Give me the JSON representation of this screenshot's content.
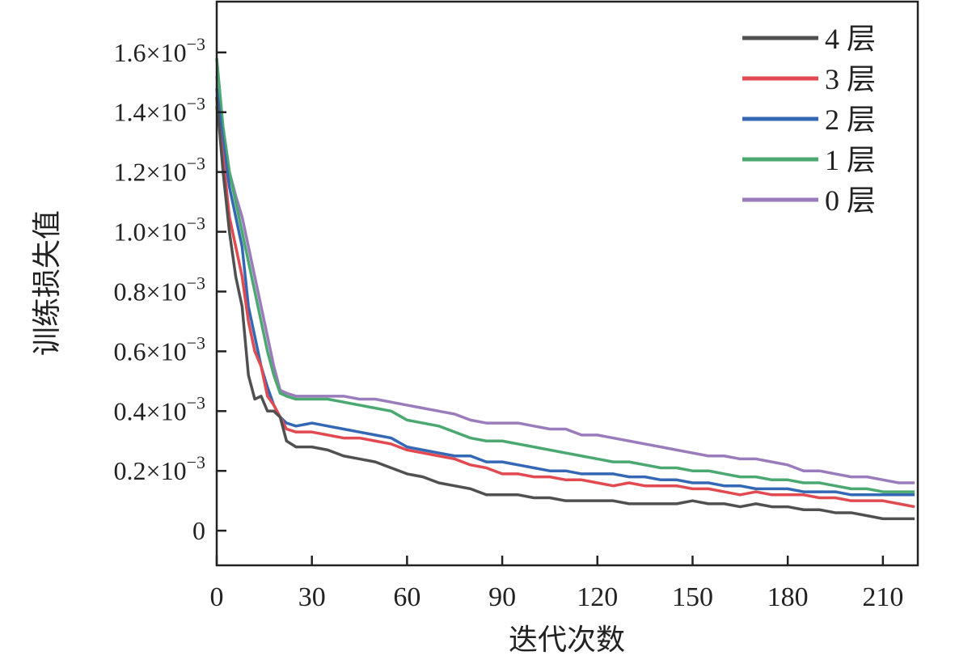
{
  "chart_data": {
    "type": "line",
    "title": "",
    "xlabel": "迭代次数",
    "ylabel": "训练损失值",
    "xlim": [
      0,
      221
    ],
    "ylim": [
      -0.000116,
      0.00177
    ],
    "y_unit_scale": 0.001,
    "xticks": [
      0,
      30,
      60,
      90,
      120,
      150,
      180,
      210
    ],
    "xtick_labels": [
      "0",
      "30",
      "60",
      "90",
      "120",
      "150",
      "180",
      "210"
    ],
    "yticks": [
      0,
      0.0002,
      0.0004,
      0.0006,
      0.0008,
      0.001,
      0.0012,
      0.0014,
      0.0016
    ],
    "ytick_labels": [
      {
        "mantissa": "0",
        "exp": ""
      },
      {
        "mantissa": "0.2×10",
        "exp": "−3"
      },
      {
        "mantissa": "0.4×10",
        "exp": "−3"
      },
      {
        "mantissa": "0.6×10",
        "exp": "−3"
      },
      {
        "mantissa": "0.8×10",
        "exp": "−3"
      },
      {
        "mantissa": "1.0×10",
        "exp": "−3"
      },
      {
        "mantissa": "1.2×10",
        "exp": "−3"
      },
      {
        "mantissa": "1.4×10",
        "exp": "−3"
      },
      {
        "mantissa": "1.6×10",
        "exp": "−3"
      }
    ],
    "grid": false,
    "legend_position": "top-right",
    "x": [
      0,
      2,
      4,
      6,
      8,
      10,
      12,
      14,
      16,
      18,
      20,
      22,
      25,
      30,
      35,
      40,
      45,
      50,
      55,
      60,
      65,
      70,
      75,
      80,
      85,
      90,
      95,
      100,
      105,
      110,
      115,
      120,
      125,
      130,
      135,
      140,
      145,
      150,
      155,
      160,
      165,
      170,
      175,
      180,
      185,
      190,
      195,
      200,
      205,
      210,
      215,
      220
    ],
    "series": [
      {
        "name": "4 层",
        "color": "#505050",
        "values_e-3": [
          1.45,
          1.2,
          1.0,
          0.85,
          0.75,
          0.52,
          0.44,
          0.45,
          0.4,
          0.4,
          0.38,
          0.3,
          0.28,
          0.28,
          0.27,
          0.25,
          0.24,
          0.23,
          0.21,
          0.19,
          0.18,
          0.16,
          0.15,
          0.14,
          0.12,
          0.12,
          0.12,
          0.11,
          0.11,
          0.1,
          0.1,
          0.1,
          0.1,
          0.09,
          0.09,
          0.09,
          0.09,
          0.1,
          0.09,
          0.09,
          0.08,
          0.09,
          0.08,
          0.08,
          0.07,
          0.07,
          0.06,
          0.06,
          0.05,
          0.04,
          0.04,
          0.04
        ]
      },
      {
        "name": "3 层",
        "color": "#e04a50",
        "values_e-3": [
          1.42,
          1.25,
          1.05,
          0.95,
          0.85,
          0.7,
          0.6,
          0.55,
          0.45,
          0.42,
          0.38,
          0.34,
          0.33,
          0.33,
          0.32,
          0.31,
          0.31,
          0.3,
          0.29,
          0.27,
          0.26,
          0.25,
          0.24,
          0.22,
          0.21,
          0.19,
          0.19,
          0.18,
          0.18,
          0.17,
          0.17,
          0.16,
          0.15,
          0.16,
          0.15,
          0.15,
          0.15,
          0.14,
          0.14,
          0.13,
          0.12,
          0.13,
          0.12,
          0.12,
          0.12,
          0.11,
          0.11,
          0.1,
          0.1,
          0.1,
          0.09,
          0.08
        ]
      },
      {
        "name": "2 层",
        "color": "#3468b4",
        "values_e-3": [
          1.48,
          1.3,
          1.15,
          1.05,
          0.95,
          0.75,
          0.65,
          0.55,
          0.48,
          0.42,
          0.38,
          0.36,
          0.35,
          0.36,
          0.35,
          0.34,
          0.33,
          0.32,
          0.31,
          0.28,
          0.27,
          0.26,
          0.25,
          0.25,
          0.23,
          0.23,
          0.22,
          0.21,
          0.2,
          0.2,
          0.19,
          0.19,
          0.19,
          0.18,
          0.18,
          0.17,
          0.17,
          0.16,
          0.16,
          0.15,
          0.15,
          0.14,
          0.14,
          0.14,
          0.13,
          0.13,
          0.13,
          0.12,
          0.12,
          0.12,
          0.12,
          0.12
        ]
      },
      {
        "name": "1 层",
        "color": "#4aa870",
        "values_e-3": [
          1.58,
          1.35,
          1.2,
          1.1,
          1.0,
          0.9,
          0.8,
          0.7,
          0.6,
          0.52,
          0.46,
          0.45,
          0.44,
          0.44,
          0.44,
          0.43,
          0.42,
          0.41,
          0.4,
          0.37,
          0.36,
          0.35,
          0.33,
          0.31,
          0.3,
          0.3,
          0.29,
          0.28,
          0.27,
          0.26,
          0.25,
          0.24,
          0.23,
          0.23,
          0.22,
          0.21,
          0.21,
          0.2,
          0.2,
          0.19,
          0.18,
          0.18,
          0.17,
          0.17,
          0.16,
          0.16,
          0.15,
          0.14,
          0.14,
          0.13,
          0.13,
          0.13
        ]
      },
      {
        "name": "0 层",
        "color": "#9a7cbc",
        "values_e-3": [
          1.52,
          1.35,
          1.2,
          1.12,
          1.05,
          0.95,
          0.85,
          0.75,
          0.65,
          0.55,
          0.47,
          0.46,
          0.45,
          0.45,
          0.45,
          0.45,
          0.44,
          0.44,
          0.43,
          0.42,
          0.41,
          0.4,
          0.39,
          0.37,
          0.36,
          0.36,
          0.36,
          0.35,
          0.34,
          0.34,
          0.32,
          0.32,
          0.31,
          0.3,
          0.29,
          0.28,
          0.27,
          0.26,
          0.25,
          0.25,
          0.24,
          0.24,
          0.23,
          0.22,
          0.2,
          0.2,
          0.19,
          0.18,
          0.18,
          0.17,
          0.16,
          0.16
        ]
      }
    ]
  }
}
